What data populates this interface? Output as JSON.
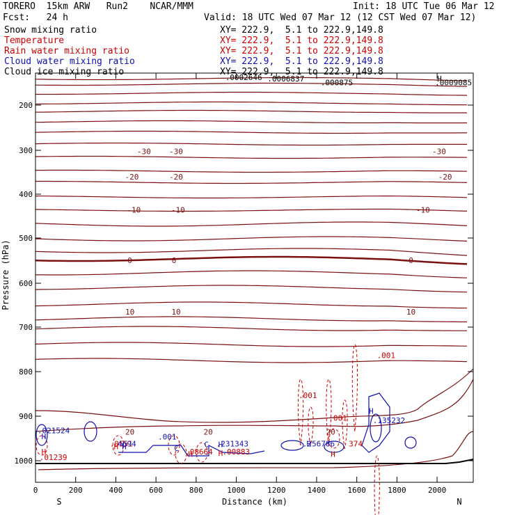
{
  "header": {
    "model": "TORERO  15km ARW   Run2    NCAR/MMM",
    "init": "Init: 18 UTC Tue 06 Mar 12",
    "fcst": "Fcst:   24 h",
    "valid": "Valid: 18 UTC Wed 07 Mar 12 (12 CST Wed 07 Mar 12)"
  },
  "fields": [
    {
      "name": "Snow mixing ratio",
      "xy": "XY= 222.9,  5.1 to 222.9,149.8",
      "color": "#000000"
    },
    {
      "name": "Temperature",
      "xy": "XY= 222.9,  5.1 to 222.9,149.8",
      "color": "#cc0000"
    },
    {
      "name": "Rain water mixing ratio",
      "xy": "XY= 222.9,  5.1 to 222.9,149.8",
      "color": "#cc0000"
    },
    {
      "name": "Cloud water mixing ratio",
      "xy": "XY= 222.9,  5.1 to 222.9,149.8",
      "color": "#1010b0"
    },
    {
      "name": "Cloud ice mixing ratio",
      "xy": "XY= 222.9,  5.1 to 222.9,149.8",
      "color": "#000000"
    }
  ],
  "chart_data": {
    "type": "contour cross-section",
    "xlabel": "Distance (km)",
    "ylabel": "Pressure (hPa)",
    "xlim": [
      0,
      2180
    ],
    "ylim": [
      1050,
      105
    ],
    "xticks": [
      0,
      200,
      400,
      600,
      800,
      1000,
      1200,
      1400,
      1600,
      1800,
      2000
    ],
    "yticks": [
      200,
      300,
      400,
      500,
      600,
      700,
      800,
      900,
      1000
    ],
    "x_endpoints": {
      "left": "S",
      "right": "N"
    },
    "temperature_labels": [
      {
        "value": "-30",
        "x": [
          540,
          700,
          2010
        ],
        "p": 302
      },
      {
        "value": "-20",
        "x": [
          480,
          700,
          2040
        ],
        "p": 360
      },
      {
        "value": "-10",
        "x": [
          490,
          710,
          1930
        ],
        "p": 436
      },
      {
        "value": "0",
        "x": [
          470,
          690,
          1870
        ],
        "p": 549
      },
      {
        "value": "10",
        "x": [
          470,
          700,
          1870
        ],
        "p": 665
      },
      {
        "value": "20",
        "x": [
          470,
          860,
          1470
        ],
        "p": 935
      }
    ],
    "snow_labels": [
      {
        "text": ".0002646",
        "x": 945,
        "p": 117
      },
      {
        "text": ".0006837",
        "x": 1155,
        "p": 122
      },
      {
        "text": ".000875",
        "x": 1420,
        "p": 133
      },
      {
        "text": ".0009085",
        "x": 1990,
        "p": 133
      }
    ],
    "rain_labels": [
      {
        "text": ".001",
        "x": 1700,
        "p": 763
      },
      {
        "text": ".001",
        "x": 1310,
        "p": 853
      },
      {
        "text": ".001",
        "x": 1460,
        "p": 904
      },
      {
        "text": ".0551",
        "x": 370,
        "p": 962
      },
      {
        "text": ".08664",
        "x": 745,
        "p": 980
      },
      {
        "text": ".00883",
        "x": 930,
        "p": 980
      },
      {
        "text": ".01239",
        "x": 20,
        "p": 992
      },
      {
        "text": "374",
        "x": 1560,
        "p": 962
      }
    ],
    "cloud_water_labels": [
      {
        "text": ".021524",
        "x": 10,
        "p": 932
      },
      {
        "text": "4694",
        "x": 410,
        "p": 962
      },
      {
        "text": ".001",
        "x": 610,
        "p": 946
      },
      {
        "text": ".231343",
        "x": 900,
        "p": 962
      },
      {
        "text": ".256786",
        "x": 1330,
        "p": 962
      },
      {
        "text": ".135232",
        "x": 1680,
        "p": 909
      }
    ],
    "markers": [
      {
        "text": "H",
        "x": 30,
        "p": 945,
        "color": "#1010b0"
      },
      {
        "text": "H",
        "x": 30,
        "p": 980,
        "color": "#cc0000"
      },
      {
        "text": "H",
        "x": 390,
        "p": 968,
        "color": "#cc0000"
      },
      {
        "text": "H",
        "x": 430,
        "p": 968,
        "color": "#1010b0"
      },
      {
        "text": "C",
        "x": 690,
        "p": 972,
        "color": "#1010b0"
      },
      {
        "text": "H",
        "x": 760,
        "p": 985,
        "color": "#cc0000"
      },
      {
        "text": "C",
        "x": 840,
        "p": 963,
        "color": "#1010b0"
      },
      {
        "text": "H",
        "x": 910,
        "p": 983,
        "color": "#cc0000"
      },
      {
        "text": "H",
        "x": 910,
        "p": 963,
        "color": "#1010b0"
      },
      {
        "text": "H",
        "x": 1350,
        "p": 962,
        "color": "#1010b0"
      },
      {
        "text": "H",
        "x": 1470,
        "p": 985,
        "color": "#cc0000"
      },
      {
        "text": "H",
        "x": 1660,
        "p": 888,
        "color": "#1010b0"
      },
      {
        "text": "H",
        "x": 2000,
        "p": 122,
        "color": "#000000"
      }
    ]
  }
}
